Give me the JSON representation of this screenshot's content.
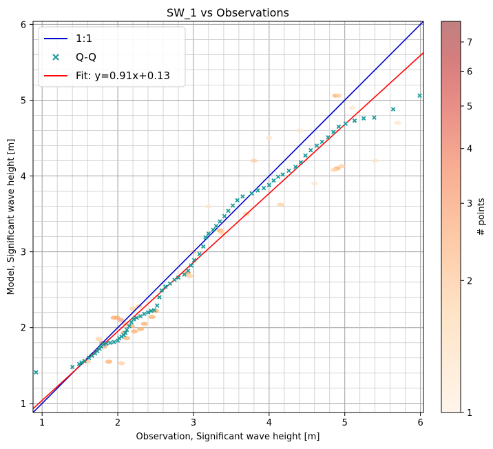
{
  "chart_data": {
    "type": "scatter",
    "title": "SW_1 vs Observations",
    "xlabel": "Observation, Significant wave height [m]",
    "ylabel": "Model, Significant wave height [m]",
    "xlim": [
      0.88,
      6.04
    ],
    "ylim": [
      0.88,
      6.04
    ],
    "xticks": [
      1,
      2,
      3,
      4,
      5,
      6
    ],
    "yticks": [
      1,
      2,
      3,
      4,
      5,
      6
    ],
    "grid": true,
    "legend_position": "top-left",
    "legend": [
      {
        "label": "1:1",
        "kind": "line",
        "color": "#0000cc"
      },
      {
        "label": "Q-Q",
        "kind": "marker",
        "color": "#1a9a9a"
      },
      {
        "label": "Fit: y=0.91x+0.13",
        "kind": "line",
        "color": "#ff0000"
      }
    ],
    "fit": {
      "slope": 0.91,
      "intercept": 0.13
    },
    "qq_points": [
      [
        0.92,
        1.41
      ],
      [
        1.4,
        1.48
      ],
      [
        1.49,
        1.52
      ],
      [
        1.52,
        1.54
      ],
      [
        1.56,
        1.56
      ],
      [
        1.62,
        1.6
      ],
      [
        1.66,
        1.63
      ],
      [
        1.7,
        1.66
      ],
      [
        1.73,
        1.69
      ],
      [
        1.76,
        1.72
      ],
      [
        1.78,
        1.75
      ],
      [
        1.81,
        1.78
      ],
      [
        1.85,
        1.79
      ],
      [
        1.9,
        1.8
      ],
      [
        1.95,
        1.81
      ],
      [
        2.0,
        1.83
      ],
      [
        2.02,
        1.86
      ],
      [
        2.05,
        1.88
      ],
      [
        2.08,
        1.9
      ],
      [
        2.1,
        1.93
      ],
      [
        2.12,
        1.97
      ],
      [
        2.15,
        2.02
      ],
      [
        2.18,
        2.07
      ],
      [
        2.21,
        2.11
      ],
      [
        2.25,
        2.13
      ],
      [
        2.3,
        2.15
      ],
      [
        2.35,
        2.18
      ],
      [
        2.4,
        2.2
      ],
      [
        2.44,
        2.22
      ],
      [
        2.48,
        2.23
      ],
      [
        2.52,
        2.29
      ],
      [
        2.55,
        2.4
      ],
      [
        2.58,
        2.49
      ],
      [
        2.63,
        2.54
      ],
      [
        2.69,
        2.58
      ],
      [
        2.75,
        2.63
      ],
      [
        2.8,
        2.66
      ],
      [
        2.88,
        2.7
      ],
      [
        2.93,
        2.75
      ],
      [
        2.97,
        2.82
      ],
      [
        3.01,
        2.89
      ],
      [
        3.08,
        2.97
      ],
      [
        3.13,
        3.07
      ],
      [
        3.16,
        3.19
      ],
      [
        3.2,
        3.24
      ],
      [
        3.26,
        3.29
      ],
      [
        3.3,
        3.34
      ],
      [
        3.35,
        3.4
      ],
      [
        3.41,
        3.47
      ],
      [
        3.46,
        3.54
      ],
      [
        3.52,
        3.61
      ],
      [
        3.58,
        3.68
      ],
      [
        3.65,
        3.73
      ],
      [
        3.77,
        3.77
      ],
      [
        3.85,
        3.81
      ],
      [
        3.93,
        3.84
      ],
      [
        4.0,
        3.88
      ],
      [
        4.06,
        3.94
      ],
      [
        4.12,
        3.99
      ],
      [
        4.18,
        4.02
      ],
      [
        4.26,
        4.07
      ],
      [
        4.35,
        4.12
      ],
      [
        4.42,
        4.18
      ],
      [
        4.48,
        4.27
      ],
      [
        4.55,
        4.34
      ],
      [
        4.63,
        4.4
      ],
      [
        4.7,
        4.45
      ],
      [
        4.78,
        4.51
      ],
      [
        4.85,
        4.58
      ],
      [
        4.92,
        4.65
      ],
      [
        5.01,
        4.69
      ],
      [
        5.13,
        4.73
      ],
      [
        5.25,
        4.76
      ],
      [
        5.39,
        4.77
      ],
      [
        5.64,
        4.88
      ],
      [
        5.99,
        5.06
      ]
    ],
    "density_points": [
      [
        1.8,
        1.8,
        5.0
      ],
      [
        1.82,
        1.75,
        3.5
      ],
      [
        1.95,
        2.13,
        3.0
      ],
      [
        1.99,
        2.13,
        3.0
      ],
      [
        2.04,
        2.1,
        3.5
      ],
      [
        2.08,
        1.93,
        3.5
      ],
      [
        2.12,
        1.86,
        3.0
      ],
      [
        2.18,
        2.02,
        3.0
      ],
      [
        2.22,
        1.95,
        2.5
      ],
      [
        2.3,
        1.98,
        2.5
      ],
      [
        2.35,
        2.05,
        2.5
      ],
      [
        2.45,
        2.14,
        2.5
      ],
      [
        2.5,
        2.22,
        2.5
      ],
      [
        1.88,
        1.55,
        2.5
      ],
      [
        2.05,
        1.53,
        2.0
      ],
      [
        1.75,
        1.85,
        2.0
      ],
      [
        1.6,
        1.55,
        1.8
      ],
      [
        2.2,
        2.25,
        2.0
      ],
      [
        2.1,
        2.05,
        2.0
      ],
      [
        2.28,
        2.28,
        1.8
      ],
      [
        2.92,
        2.72,
        2.5
      ],
      [
        2.95,
        2.68,
        2.0
      ],
      [
        3.35,
        3.28,
        2.5
      ],
      [
        3.38,
        3.25,
        2.0
      ],
      [
        3.0,
        3.0,
        1.8
      ],
      [
        3.7,
        3.5,
        1.8
      ],
      [
        4.15,
        3.62,
        1.8
      ],
      [
        4.9,
        4.1,
        2.5
      ],
      [
        4.86,
        4.08,
        2.0
      ],
      [
        4.88,
        5.06,
        3.0
      ],
      [
        4.92,
        5.06,
        2.0
      ],
      [
        4.96,
        4.13,
        1.5
      ],
      [
        3.8,
        4.2,
        1.5
      ],
      [
        4.4,
        4.6,
        1.4
      ],
      [
        5.1,
        4.9,
        1.4
      ],
      [
        5.7,
        4.7,
        1.4
      ],
      [
        3.2,
        3.6,
        1.4
      ],
      [
        4.0,
        4.5,
        1.3
      ],
      [
        4.6,
        3.9,
        1.3
      ],
      [
        5.4,
        4.2,
        1.3
      ]
    ],
    "colorbar": {
      "label": "# points",
      "ticks": [
        1,
        2,
        3,
        4,
        5,
        6,
        7
      ],
      "range": [
        1,
        7.8
      ],
      "colors": [
        "#fff5eb",
        "#fee6ce",
        "#fdd0a2",
        "#fdae6b",
        "#f4a582",
        "#e8817a",
        "#d27878",
        "#c08080"
      ]
    }
  }
}
